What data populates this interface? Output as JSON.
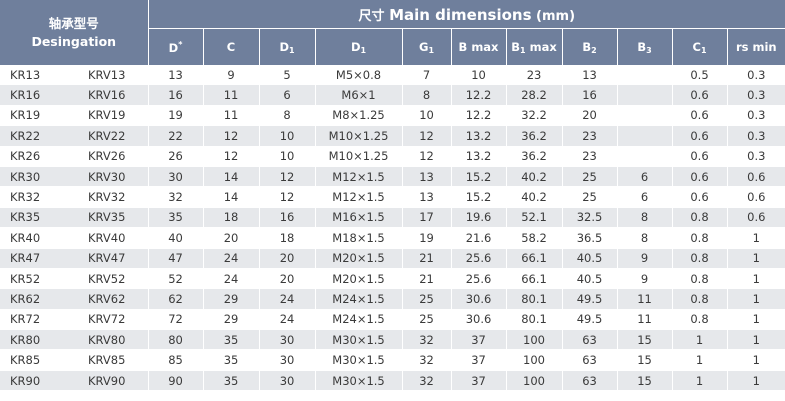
{
  "header": {
    "designation_cn": "轴承型号",
    "designation_en": "Desingation",
    "main_cn": "尺寸",
    "main_en": "Main dimensions",
    "main_unit": "(mm)",
    "columns": [
      {
        "base": "D",
        "sup": "*",
        "sub": "",
        "tail": ""
      },
      {
        "base": "C",
        "sup": "",
        "sub": "",
        "tail": ""
      },
      {
        "base": "D",
        "sup": "",
        "sub": "1",
        "tail": ""
      },
      {
        "base": "D",
        "sup": "",
        "sub": "1",
        "tail": ""
      },
      {
        "base": "G",
        "sup": "",
        "sub": "1",
        "tail": ""
      },
      {
        "base": "B max",
        "sup": "",
        "sub": "",
        "tail": ""
      },
      {
        "base": "B",
        "sup": "",
        "sub": "1",
        "tail": " max"
      },
      {
        "base": "B",
        "sup": "",
        "sub": "2",
        "tail": ""
      },
      {
        "base": "B",
        "sup": "",
        "sub": "3",
        "tail": ""
      },
      {
        "base": "C",
        "sup": "",
        "sub": "1",
        "tail": ""
      },
      {
        "base": "rs min",
        "sup": "",
        "sub": "",
        "tail": ""
      }
    ]
  },
  "rows": [
    [
      "KR13",
      "KRV13",
      "13",
      "9",
      "5",
      "M5×0.8",
      "7",
      "10",
      "23",
      "13",
      "",
      "0.5",
      "0.3"
    ],
    [
      "KR16",
      "KRV16",
      "16",
      "11",
      "6",
      "M6×1",
      "8",
      "12.2",
      "28.2",
      "16",
      "",
      "0.6",
      "0.3"
    ],
    [
      "KR19",
      "KRV19",
      "19",
      "11",
      "8",
      "M8×1.25",
      "10",
      "12.2",
      "32.2",
      "20",
      "",
      "0.6",
      "0.3"
    ],
    [
      "KR22",
      "KRV22",
      "22",
      "12",
      "10",
      "M10×1.25",
      "12",
      "13.2",
      "36.2",
      "23",
      "",
      "0.6",
      "0.3"
    ],
    [
      "KR26",
      "KRV26",
      "26",
      "12",
      "10",
      "M10×1.25",
      "12",
      "13.2",
      "36.2",
      "23",
      "",
      "0.6",
      "0.3"
    ],
    [
      "KR30",
      "KRV30",
      "30",
      "14",
      "12",
      "M12×1.5",
      "13",
      "15.2",
      "40.2",
      "25",
      "6",
      "0.6",
      "0.6"
    ],
    [
      "KR32",
      "KRV32",
      "32",
      "14",
      "12",
      "M12×1.5",
      "13",
      "15.2",
      "40.2",
      "25",
      "6",
      "0.6",
      "0.6"
    ],
    [
      "KR35",
      "KRV35",
      "35",
      "18",
      "16",
      "M16×1.5",
      "17",
      "19.6",
      "52.1",
      "32.5",
      "8",
      "0.8",
      "0.6"
    ],
    [
      "KR40",
      "KRV40",
      "40",
      "20",
      "18",
      "M18×1.5",
      "19",
      "21.6",
      "58.2",
      "36.5",
      "8",
      "0.8",
      "1"
    ],
    [
      "KR47",
      "KRV47",
      "47",
      "24",
      "20",
      "M20×1.5",
      "21",
      "25.6",
      "66.1",
      "40.5",
      "9",
      "0.8",
      "1"
    ],
    [
      "KR52",
      "KRV52",
      "52",
      "24",
      "20",
      "M20×1.5",
      "21",
      "25.6",
      "66.1",
      "40.5",
      "9",
      "0.8",
      "1"
    ],
    [
      "KR62",
      "KRV62",
      "62",
      "29",
      "24",
      "M24×1.5",
      "25",
      "30.6",
      "80.1",
      "49.5",
      "11",
      "0.8",
      "1"
    ],
    [
      "KR72",
      "KRV72",
      "72",
      "29",
      "24",
      "M24×1.5",
      "25",
      "30.6",
      "80.1",
      "49.5",
      "11",
      "0.8",
      "1"
    ],
    [
      "KR80",
      "KRV80",
      "80",
      "35",
      "30",
      "M30×1.5",
      "32",
      "37",
      "100",
      "63",
      "15",
      "1",
      "1"
    ],
    [
      "KR85",
      "KRV85",
      "85",
      "35",
      "30",
      "M30×1.5",
      "32",
      "37",
      "100",
      "63",
      "15",
      "1",
      "1"
    ],
    [
      "KR90",
      "KRV90",
      "90",
      "35",
      "30",
      "M30×1.5",
      "32",
      "37",
      "100",
      "63",
      "15",
      "1",
      "1"
    ]
  ]
}
